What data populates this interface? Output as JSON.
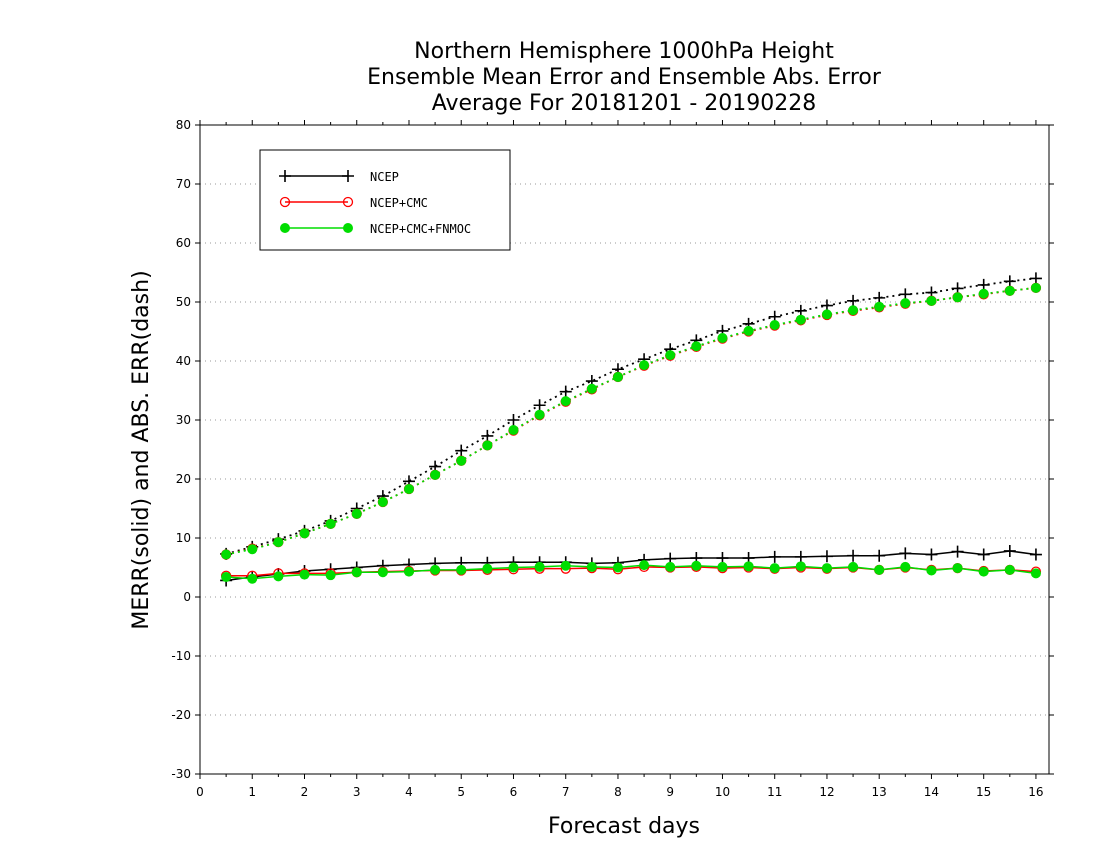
{
  "chart_data": {
    "type": "line",
    "title_lines": [
      "Northern Hemisphere 1000hPa Height",
      "Ensemble Mean Error and Ensemble Abs. Error",
      "Average For 20181201 - 20190228"
    ],
    "xlabel": "Forecast days",
    "ylabel": "MERR(solid) and ABS. ERR(dash)",
    "xlim": [
      0,
      16.25
    ],
    "ylim": [
      -30,
      80
    ],
    "xticks": [
      0,
      1,
      2,
      3,
      4,
      5,
      6,
      7,
      8,
      9,
      10,
      11,
      12,
      13,
      14,
      15,
      16
    ],
    "yticks": [
      -30,
      -20,
      -10,
      0,
      10,
      20,
      30,
      40,
      50,
      60,
      70,
      80
    ],
    "grid": "horizontal-dotted",
    "legend_position": "top-left",
    "x": [
      0.5,
      1,
      1.5,
      2,
      2.5,
      3,
      3.5,
      4,
      4.5,
      5,
      5.5,
      6,
      6.5,
      7,
      7.5,
      8,
      8.5,
      9,
      9.5,
      10,
      10.5,
      11,
      11.5,
      12,
      12.5,
      13,
      13.5,
      14,
      14.5,
      15,
      15.5,
      16
    ],
    "series": [
      {
        "name": "NCEP",
        "color": "#000000",
        "marker": "plus",
        "merr": [
          2.8,
          3.4,
          3.9,
          4.4,
          4.7,
          5.0,
          5.3,
          5.5,
          5.7,
          5.8,
          5.8,
          5.9,
          5.9,
          5.9,
          5.7,
          5.8,
          6.3,
          6.5,
          6.6,
          6.6,
          6.6,
          6.8,
          6.8,
          6.9,
          7.0,
          7.0,
          7.4,
          7.2,
          7.7,
          7.2,
          7.8,
          7.2
        ],
        "abs_err": [
          7.3,
          8.5,
          9.8,
          11.2,
          12.9,
          15.0,
          17.1,
          19.6,
          22.1,
          24.8,
          27.3,
          30.0,
          32.5,
          34.8,
          36.6,
          38.6,
          40.3,
          42.0,
          43.5,
          45.1,
          46.3,
          47.5,
          48.5,
          49.4,
          50.2,
          50.7,
          51.3,
          51.6,
          52.3,
          52.9,
          53.5,
          54.0
        ]
      },
      {
        "name": "NCEP+CMC",
        "color": "#ff0000",
        "marker": "open-circle",
        "merr": [
          3.6,
          3.6,
          4.0,
          4.0,
          4.0,
          4.2,
          4.3,
          4.4,
          4.5,
          4.5,
          4.6,
          4.7,
          4.8,
          4.8,
          4.9,
          4.7,
          5.1,
          5.0,
          5.1,
          4.9,
          5.0,
          4.8,
          5.0,
          4.8,
          5.0,
          4.6,
          5.0,
          4.6,
          4.9,
          4.4,
          4.6,
          4.3
        ],
        "abs_err": [
          7.2,
          8.2,
          9.3,
          10.8,
          12.4,
          14.1,
          16.1,
          18.3,
          20.7,
          23.1,
          25.7,
          28.2,
          30.8,
          33.1,
          35.2,
          37.3,
          39.2,
          40.9,
          42.4,
          43.8,
          45.0,
          46.0,
          46.9,
          47.8,
          48.5,
          49.1,
          49.7,
          50.2,
          50.8,
          51.3,
          51.9,
          52.4
        ]
      },
      {
        "name": "NCEP+CMC+FNMOC",
        "color": "#00dd00",
        "marker": "filled-circle",
        "merr": [
          3.4,
          3.1,
          3.5,
          3.8,
          3.7,
          4.2,
          4.2,
          4.3,
          4.6,
          4.6,
          4.8,
          5.0,
          5.1,
          5.3,
          5.1,
          5.0,
          5.4,
          5.1,
          5.3,
          5.1,
          5.2,
          4.9,
          5.2,
          4.9,
          5.1,
          4.6,
          5.1,
          4.5,
          4.9,
          4.3,
          4.6,
          4.0
        ],
        "abs_err": [
          7.2,
          8.1,
          9.3,
          10.8,
          12.4,
          14.1,
          16.1,
          18.3,
          20.7,
          23.1,
          25.7,
          28.3,
          30.9,
          33.2,
          35.3,
          37.3,
          39.3,
          41.0,
          42.5,
          43.9,
          45.1,
          46.1,
          47.0,
          47.9,
          48.6,
          49.2,
          49.8,
          50.2,
          50.8,
          51.4,
          51.9,
          52.4
        ]
      }
    ]
  }
}
